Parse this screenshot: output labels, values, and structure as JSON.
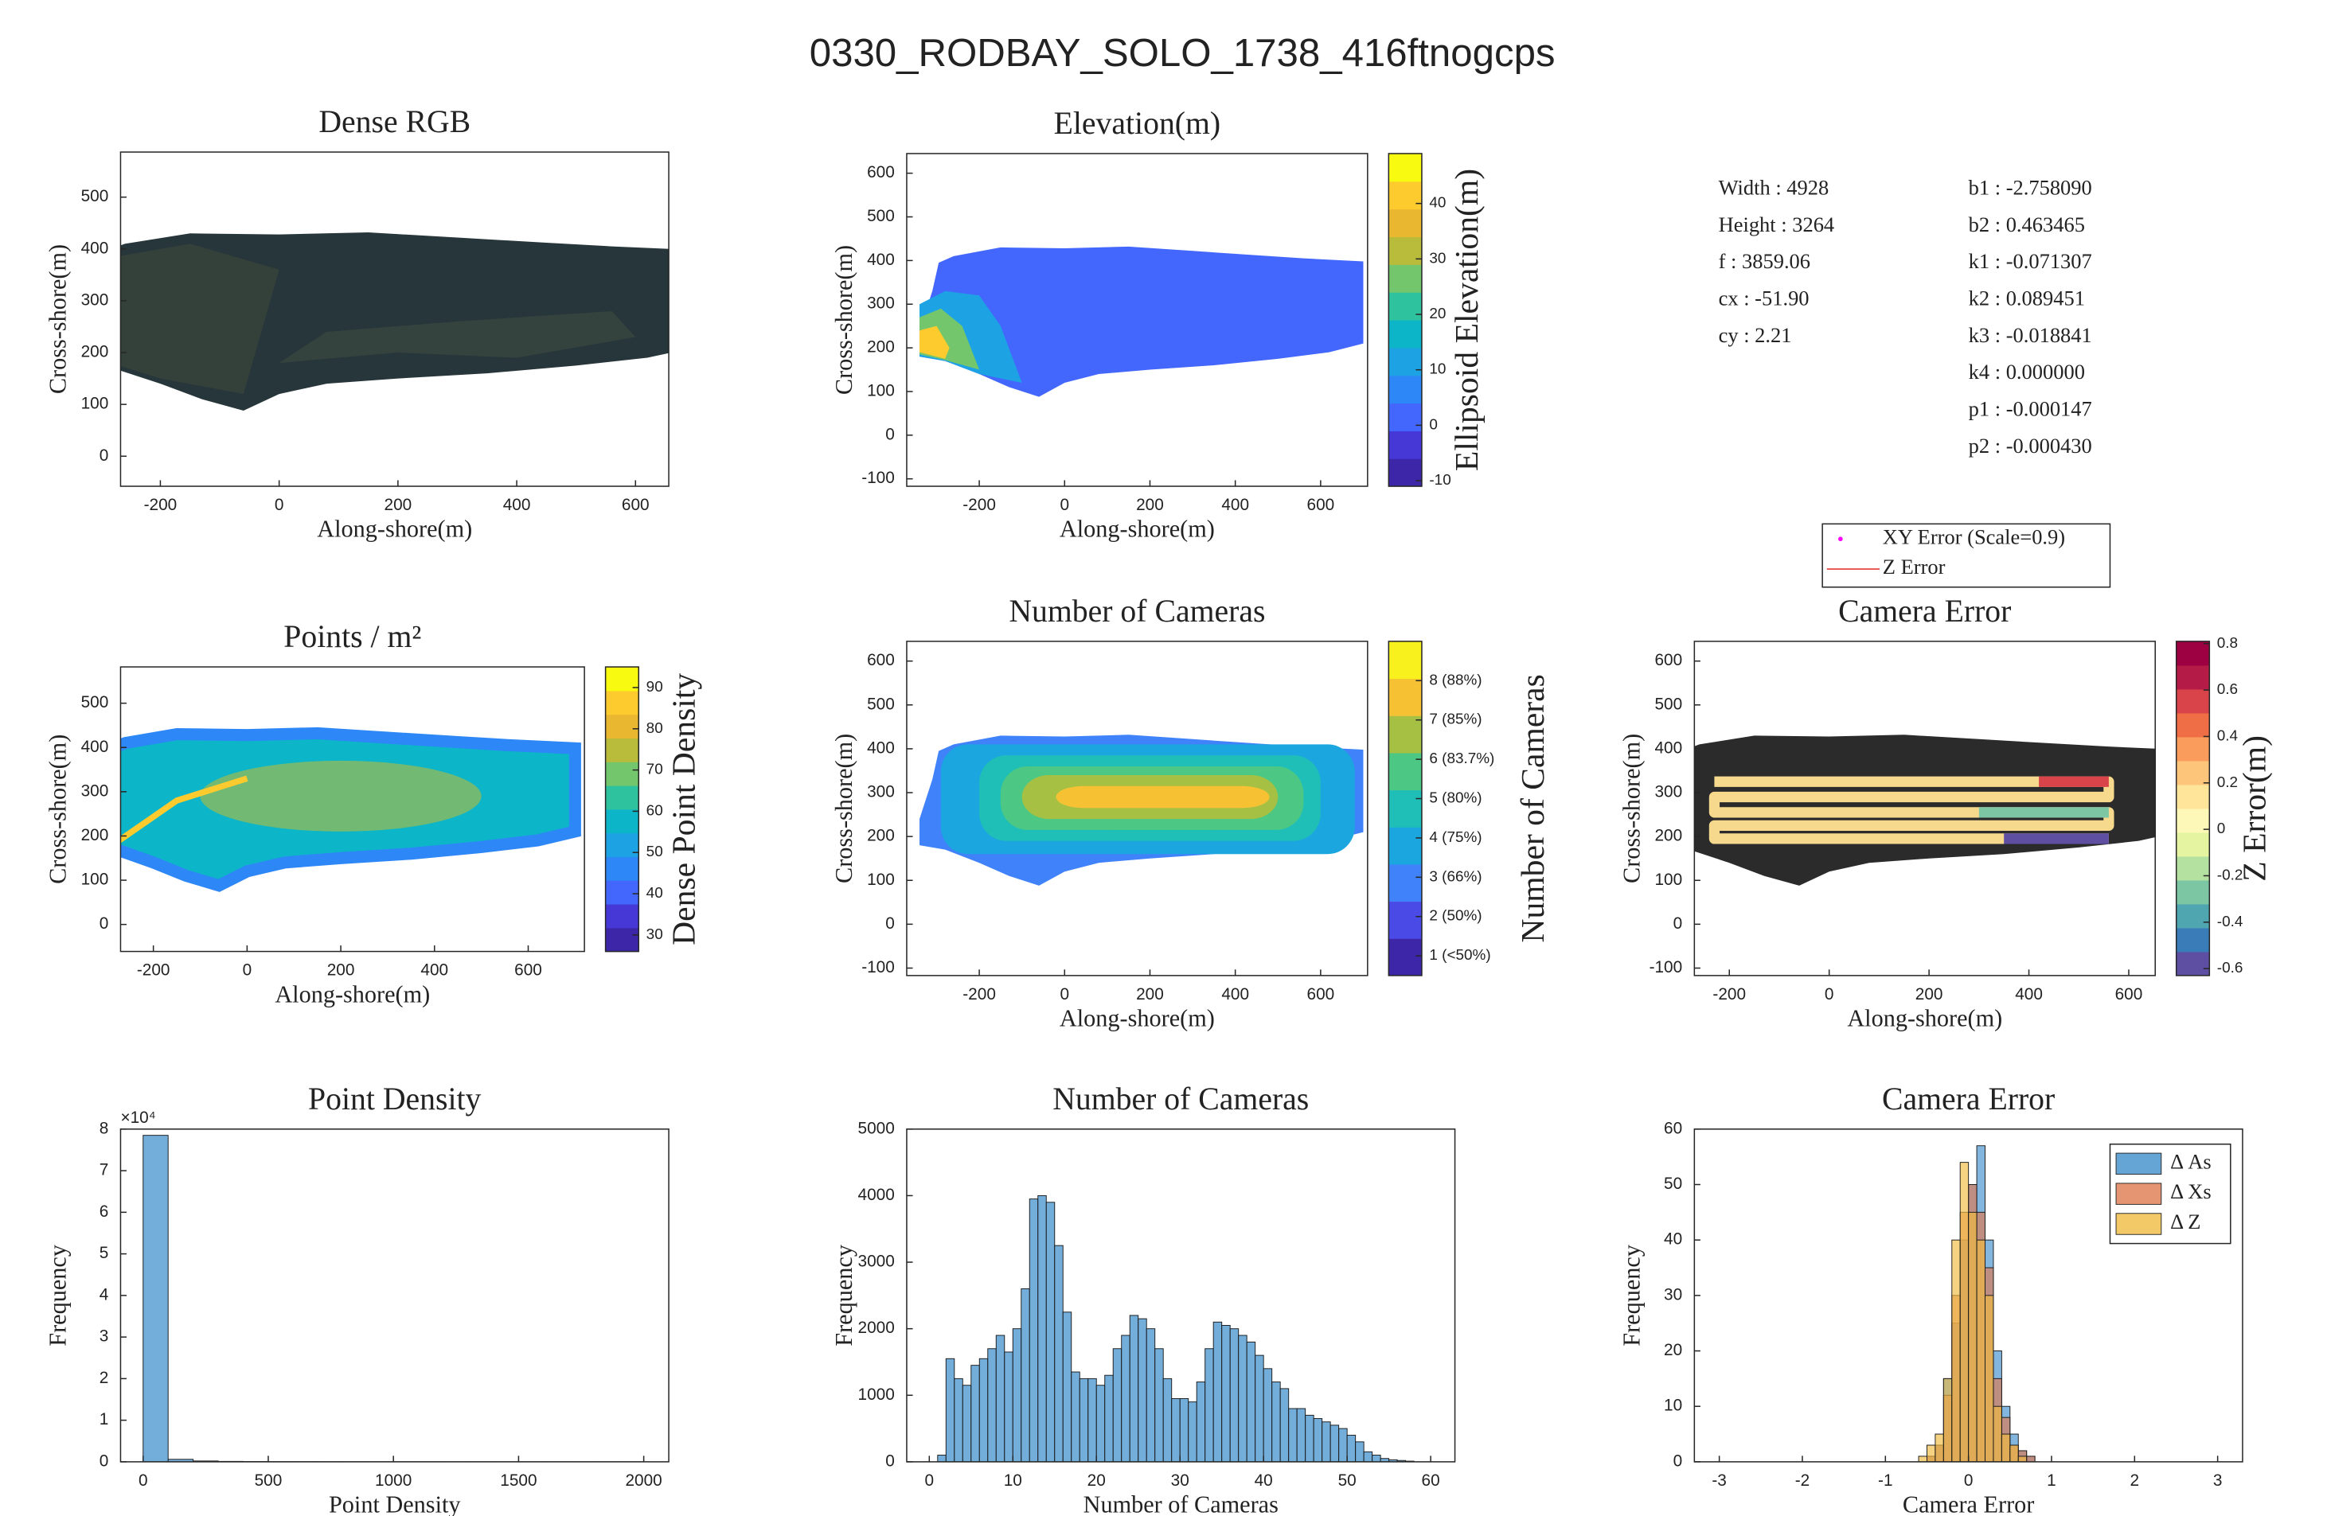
{
  "title": "0330_RODBAY_SOLO_1738_416ftnogcps",
  "camera_parameters": {
    "left": [
      "Width : 4928",
      "Height : 3264",
      "f : 3859.06",
      "cx : -51.90",
      "cy : 2.21"
    ],
    "right": [
      "b1 : -2.758090",
      "b2 : 0.463465",
      "k1 : -0.071307",
      "k2 : 0.089451",
      "k3 : -0.018841",
      "k4 : 0.000000",
      "p1 : -0.000147",
      "p2 : -0.000430"
    ]
  },
  "chart_data": [
    {
      "type": "map",
      "layer": "rgb",
      "title": "Dense RGB",
      "xlabel": "Along-shore(m)",
      "ylabel": "Cross-shore(m)",
      "xlim": [
        -267,
        656
      ],
      "ylim": [
        -58,
        587
      ],
      "xticks": [
        -200,
        0,
        200,
        400,
        600
      ],
      "yticks": [
        0,
        100,
        200,
        300,
        400,
        500
      ]
    },
    {
      "type": "map",
      "layer": "elevation",
      "title": "Elevation(m)",
      "xlabel": "Along-shore(m)",
      "ylabel": "Cross-shore(m)",
      "xlim": [
        -370,
        710
      ],
      "ylim": [
        -117,
        645
      ],
      "xticks": [
        -200,
        0,
        200,
        400,
        600
      ],
      "yticks": [
        -100,
        0,
        100,
        200,
        300,
        400,
        500,
        600
      ],
      "colorbar": {
        "label": "Ellipsoid Elevation(m)",
        "clim": [
          -11,
          49
        ],
        "ticks": [
          -10,
          0,
          10,
          20,
          30,
          40
        ],
        "colors": [
          "#3d26a8",
          "#4538d7",
          "#4367fd",
          "#2e87f7",
          "#1da2e3",
          "#0cb6c8",
          "#2ec29f",
          "#74c66d",
          "#b8bc3a",
          "#e9b730",
          "#fdcb2d",
          "#f8fa0f"
        ]
      }
    },
    {
      "type": "map",
      "layer": "density",
      "title": "Points / m²",
      "xlabel": "Along-shore(m)",
      "ylabel": "Cross-shore(m)",
      "xlim": [
        -270,
        720
      ],
      "ylim": [
        -61,
        582
      ],
      "xticks": [
        -200,
        0,
        200,
        400,
        600
      ],
      "yticks": [
        0,
        100,
        200,
        300,
        400,
        500
      ],
      "colorbar": {
        "label": "Dense Point Density",
        "clim": [
          26,
          95
        ],
        "ticks": [
          30,
          40,
          50,
          60,
          70,
          80,
          90
        ],
        "colors": [
          "#3d26a8",
          "#4538d7",
          "#4367fd",
          "#2e87f7",
          "#1da2e3",
          "#0cb6c8",
          "#2ec29f",
          "#74c66d",
          "#b8bc3a",
          "#e9b730",
          "#fdcb2d",
          "#f8fa0f"
        ]
      }
    },
    {
      "type": "map",
      "layer": "cameras",
      "title": "Number of Cameras",
      "xlabel": "Along-shore(m)",
      "ylabel": "Cross-shore(m)",
      "xlim": [
        -370,
        710
      ],
      "ylim": [
        -117,
        645
      ],
      "xticks": [
        -200,
        0,
        200,
        400,
        600
      ],
      "yticks": [
        -100,
        0,
        100,
        200,
        300,
        400,
        500,
        600
      ],
      "colorbar": {
        "label": "Number of Cameras",
        "clim": [
          0.5,
          9
        ],
        "ticks": [
          {
            "value": 1,
            "label": "1 (<50%)"
          },
          {
            "value": 2,
            "label": "2 (50%)"
          },
          {
            "value": 3,
            "label": "3 (66%)"
          },
          {
            "value": 4,
            "label": "4 (75%)"
          },
          {
            "value": 5,
            "label": "5 (80%)"
          },
          {
            "value": 6,
            "label": "6 (83.7%)"
          },
          {
            "value": 7,
            "label": "7 (85%)"
          },
          {
            "value": 8,
            "label": "8 (88%)"
          }
        ],
        "colors": [
          "#3e26a8",
          "#4a4ae6",
          "#3f82fa",
          "#1ba6e0",
          "#1fbfb8",
          "#4cc884",
          "#a6c043",
          "#f6c233",
          "#f8f11d"
        ]
      }
    },
    {
      "type": "map",
      "layer": "error",
      "title": "Camera Error",
      "xlabel": "Along-shore(m)",
      "ylabel": "Cross-shore(m)",
      "xlim": [
        -270,
        653
      ],
      "ylim": [
        -117,
        645
      ],
      "xticks": [
        -200,
        0,
        200,
        400,
        600
      ],
      "yticks": [
        -100,
        0,
        100,
        200,
        300,
        400,
        500,
        600
      ],
      "legend": [
        {
          "name": "XY Error (Scale=0.9)",
          "color": "#ff00ff"
        },
        {
          "name": "Z Error",
          "color": "#e8534a"
        }
      ],
      "colorbar": {
        "label": "Z Error(m)",
        "clim": [
          -0.63,
          0.81
        ],
        "ticks": [
          -0.6,
          -0.4,
          -0.2,
          0,
          0.2,
          0.4,
          0.6,
          0.8
        ],
        "colors": [
          "#5e4fa2",
          "#3a7cb8",
          "#4fa6b0",
          "#7cc6a4",
          "#b5e1a0",
          "#e5f4a0",
          "#fef8b8",
          "#fee59a",
          "#fdc57a",
          "#fa9c5c",
          "#f06e45",
          "#d8444a",
          "#b41c47",
          "#9e0142"
        ]
      }
    },
    {
      "type": "histogram",
      "title": "Point Density",
      "xlabel": "Point Density",
      "ylabel": "Frequency",
      "xlim": [
        -90,
        2100
      ],
      "ylim": [
        0,
        80000
      ],
      "xticks": [
        0,
        500,
        1000,
        1500,
        2000
      ],
      "yticks": [
        0,
        {
          "value": 10000,
          "label": "1"
        },
        {
          "value": 20000,
          "label": "2"
        },
        {
          "value": 30000,
          "label": "3"
        },
        {
          "value": 40000,
          "label": "4"
        },
        {
          "value": 50000,
          "label": "5"
        },
        {
          "value": 60000,
          "label": "6"
        },
        {
          "value": 70000,
          "label": "7"
        },
        {
          "value": 80000,
          "label": "8"
        }
      ],
      "y_exponent_label": "×10⁴",
      "bins": [
        0,
        100,
        200,
        300,
        400,
        500,
        600,
        700,
        800,
        900,
        1000,
        1100,
        1200,
        1300,
        1400,
        1500,
        1600,
        1700,
        1800,
        1900,
        2000
      ],
      "series": [
        {
          "color": "#5a9fd3",
          "values": [
            78500,
            600,
            200,
            100,
            60,
            40,
            30,
            20,
            15,
            10,
            8,
            6,
            5,
            4,
            3,
            2,
            2,
            1,
            1,
            1
          ]
        }
      ]
    },
    {
      "type": "histogram",
      "title": "Number of Cameras",
      "xlabel": "Number of Cameras",
      "ylabel": "Frequency",
      "xlim": [
        -2.7,
        62.9
      ],
      "ylim": [
        0,
        5000
      ],
      "xticks": [
        0,
        10,
        20,
        30,
        40,
        50,
        60
      ],
      "yticks": [
        0,
        1000,
        2000,
        3000,
        4000,
        5000
      ],
      "bins": [
        1,
        2,
        3,
        4,
        5,
        6,
        7,
        8,
        9,
        10,
        11,
        12,
        13,
        14,
        15,
        16,
        17,
        18,
        19,
        20,
        21,
        22,
        23,
        24,
        25,
        26,
        27,
        28,
        29,
        30,
        31,
        32,
        33,
        34,
        35,
        36,
        37,
        38,
        39,
        40,
        41,
        42,
        43,
        44,
        45,
        46,
        47,
        48,
        49,
        50,
        51,
        52,
        53,
        54,
        55,
        56,
        57,
        58
      ],
      "series": [
        {
          "color": "#5a9fd3",
          "values": [
            100,
            1550,
            1250,
            1150,
            1450,
            1550,
            1700,
            1900,
            1650,
            2000,
            2600,
            3950,
            4000,
            3900,
            3250,
            2250,
            1350,
            1250,
            1250,
            1150,
            1300,
            1700,
            1900,
            2200,
            2150,
            2000,
            1700,
            1250,
            950,
            950,
            900,
            1200,
            1700,
            2100,
            2050,
            2000,
            1900,
            1800,
            1600,
            1400,
            1200,
            1100,
            800,
            800,
            700,
            650,
            600,
            550,
            500,
            400,
            300,
            150,
            100,
            50,
            30,
            20,
            10
          ]
        }
      ]
    },
    {
      "type": "histogram",
      "title": "Camera Error",
      "xlabel": "Camera Error",
      "ylabel": "Frequency",
      "xlim": [
        -3.3,
        3.3
      ],
      "ylim": [
        0,
        60
      ],
      "xticks": [
        -3,
        -2,
        -1,
        0,
        1,
        2,
        3
      ],
      "yticks": [
        0,
        10,
        20,
        30,
        40,
        50,
        60
      ],
      "legend_position": "upper right",
      "bins": [
        -0.6,
        -0.5,
        -0.4,
        -0.3,
        -0.2,
        -0.1,
        0,
        0.1,
        0.2,
        0.3,
        0.4,
        0.5,
        0.6,
        0.7,
        0.8,
        0.9
      ],
      "series": [
        {
          "name": "Δ As",
          "color": "#3f8fcc",
          "values": [
            0,
            1,
            3,
            15,
            25,
            40,
            50,
            57,
            40,
            20,
            10,
            5,
            2,
            1,
            0
          ]
        },
        {
          "name": "Δ Xs",
          "color": "#e07a50",
          "values": [
            0,
            1,
            3,
            12,
            30,
            45,
            50,
            45,
            35,
            15,
            8,
            3,
            2,
            1,
            0
          ]
        },
        {
          "name": "Δ Z",
          "color": "#efbb40",
          "values": [
            1,
            3,
            5,
            15,
            40,
            54,
            45,
            40,
            30,
            10,
            5,
            3,
            1,
            0,
            0
          ]
        }
      ]
    }
  ]
}
